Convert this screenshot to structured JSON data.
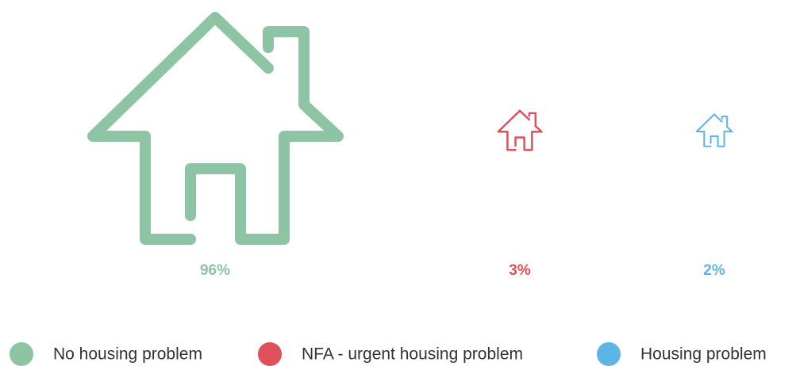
{
  "chart_data": {
    "type": "pictogram",
    "categories": [
      "No housing problem",
      "NFA - urgent housing problem",
      "Housing problem"
    ],
    "values": [
      96,
      3,
      2
    ],
    "value_labels": [
      "96%",
      "3%",
      "2%"
    ],
    "colors": [
      "#8dc5a4",
      "#e0505a",
      "#5cb5e6"
    ],
    "legend": "bottom"
  }
}
